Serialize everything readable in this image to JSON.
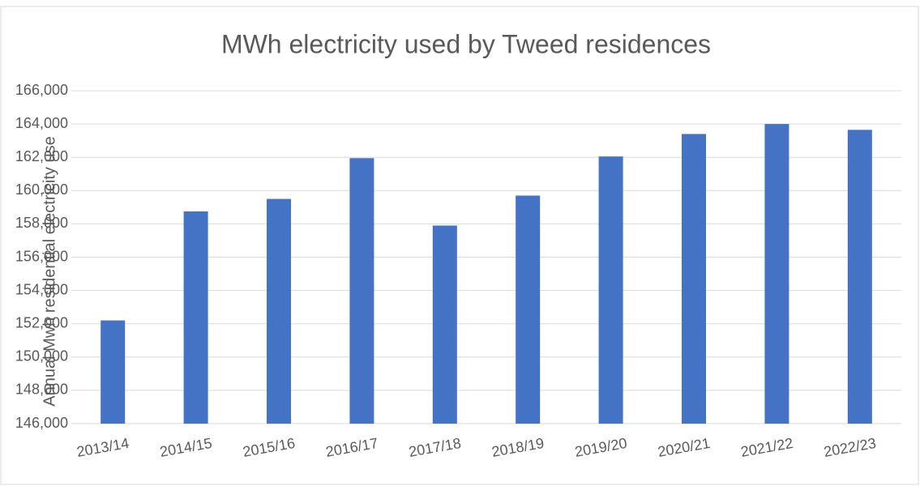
{
  "chart_data": {
    "type": "bar",
    "title": "MWh electricity used by Tweed residences",
    "y_label": "Annual Mwh residential electricity use",
    "categories": [
      "2013/14",
      "2014/15",
      "2015/16",
      "2016/17",
      "2017/18",
      "2018/19",
      "2019/20",
      "2020/21",
      "2021/22",
      "2022/23"
    ],
    "values": [
      152200,
      158750,
      159500,
      161950,
      157900,
      159700,
      162050,
      163400,
      164000,
      163650
    ],
    "color": "#4472c4",
    "ylim": [
      146000,
      166000
    ],
    "yticks": [
      {
        "value": 146000,
        "label": "146,000"
      },
      {
        "value": 148000,
        "label": "148,000"
      },
      {
        "value": 150000,
        "label": "150,000"
      },
      {
        "value": 152000,
        "label": "152,000"
      },
      {
        "value": 154000,
        "label": "154,000"
      },
      {
        "value": 156000,
        "label": "156,000"
      },
      {
        "value": 158000,
        "label": "158,000"
      },
      {
        "value": 160000,
        "label": "160,000"
      },
      {
        "value": 162000,
        "label": "162,000"
      },
      {
        "value": 164000,
        "label": "164,000"
      },
      {
        "value": 166000,
        "label": "166,000"
      }
    ],
    "grid": true
  }
}
